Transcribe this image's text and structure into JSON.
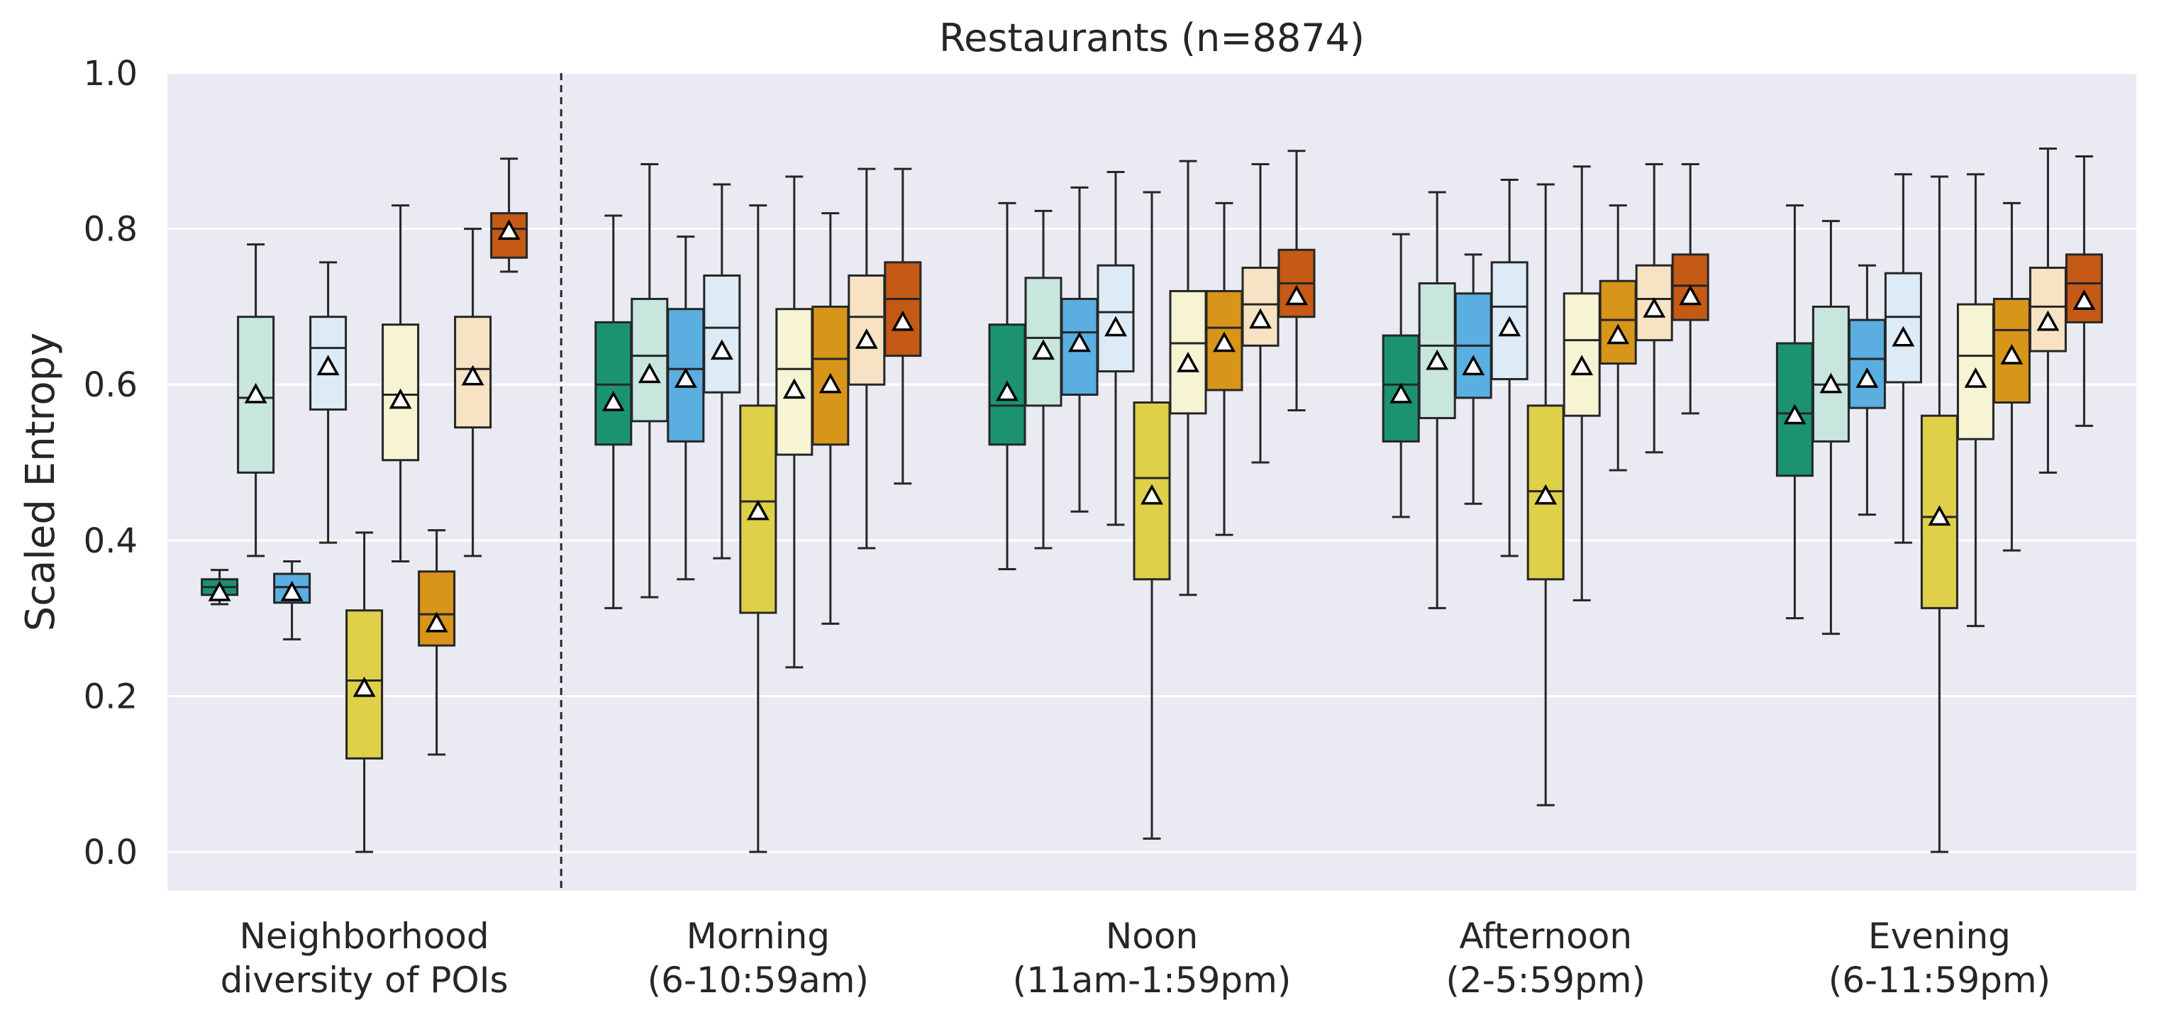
{
  "chart_data": {
    "type": "box",
    "title": "Restaurants (n=8874)",
    "xlabel": "",
    "ylabel": "Scaled Entropy",
    "ylim": [
      -0.05,
      1.0
    ],
    "yticks": [
      "0.0",
      "0.2",
      "0.4",
      "0.6",
      "0.8",
      "1.0"
    ],
    "grid": true,
    "legend": "none",
    "mean_marker": "triangle",
    "palette": [
      "#1b9371",
      "#c8e6dd",
      "#5aaee0",
      "#dcebf5",
      "#dfd04a",
      "#f7f4d4",
      "#d7951a",
      "#f7e3c4",
      "#c45a15"
    ],
    "categories": [
      {
        "label": "Neighborhood\ndiversity of POIs",
        "boxes": [
          {
            "min": 0.318,
            "q1": 0.33,
            "median": 0.34,
            "q3": 0.35,
            "max": 0.362,
            "mean": 0.333
          },
          {
            "min": 0.38,
            "q1": 0.487,
            "median": 0.583,
            "q3": 0.687,
            "max": 0.78,
            "mean": 0.587
          },
          {
            "min": 0.273,
            "q1": 0.32,
            "median": 0.34,
            "q3": 0.357,
            "max": 0.373,
            "mean": 0.333
          },
          {
            "min": 0.397,
            "q1": 0.568,
            "median": 0.647,
            "q3": 0.687,
            "max": 0.757,
            "mean": 0.623
          },
          {
            "min": 0.0,
            "q1": 0.12,
            "median": 0.22,
            "q3": 0.31,
            "max": 0.41,
            "mean": 0.21
          },
          {
            "min": 0.373,
            "q1": 0.503,
            "median": 0.587,
            "q3": 0.677,
            "max": 0.83,
            "mean": 0.58
          },
          {
            "min": 0.125,
            "q1": 0.265,
            "median": 0.305,
            "q3": 0.36,
            "max": 0.413,
            "mean": 0.293
          },
          {
            "min": 0.38,
            "q1": 0.545,
            "median": 0.62,
            "q3": 0.687,
            "max": 0.8,
            "mean": 0.61
          },
          {
            "min": 0.745,
            "q1": 0.763,
            "median": 0.8,
            "q3": 0.82,
            "max": 0.89,
            "mean": 0.797
          }
        ]
      },
      {
        "label": "Morning\n(6-10:59am)",
        "boxes": [
          {
            "min": 0.313,
            "q1": 0.523,
            "median": 0.6,
            "q3": 0.68,
            "max": 0.817,
            "mean": 0.577
          },
          {
            "min": 0.327,
            "q1": 0.553,
            "median": 0.637,
            "q3": 0.71,
            "max": 0.883,
            "mean": 0.613
          },
          {
            "min": 0.35,
            "q1": 0.527,
            "median": 0.62,
            "q3": 0.697,
            "max": 0.79,
            "mean": 0.607
          },
          {
            "min": 0.377,
            "q1": 0.59,
            "median": 0.673,
            "q3": 0.74,
            "max": 0.857,
            "mean": 0.643
          },
          {
            "min": 0.0,
            "q1": 0.307,
            "median": 0.45,
            "q3": 0.573,
            "max": 0.83,
            "mean": 0.437
          },
          {
            "min": 0.237,
            "q1": 0.51,
            "median": 0.62,
            "q3": 0.697,
            "max": 0.867,
            "mean": 0.593
          },
          {
            "min": 0.293,
            "q1": 0.523,
            "median": 0.633,
            "q3": 0.7,
            "max": 0.82,
            "mean": 0.6
          },
          {
            "min": 0.39,
            "q1": 0.6,
            "median": 0.687,
            "q3": 0.74,
            "max": 0.877,
            "mean": 0.657
          },
          {
            "min": 0.473,
            "q1": 0.637,
            "median": 0.71,
            "q3": 0.757,
            "max": 0.877,
            "mean": 0.68
          }
        ]
      },
      {
        "label": "Noon\n(11am-1:59pm)",
        "boxes": [
          {
            "min": 0.363,
            "q1": 0.523,
            "median": 0.573,
            "q3": 0.677,
            "max": 0.833,
            "mean": 0.59
          },
          {
            "min": 0.39,
            "q1": 0.573,
            "median": 0.66,
            "q3": 0.737,
            "max": 0.823,
            "mean": 0.643
          },
          {
            "min": 0.437,
            "q1": 0.587,
            "median": 0.667,
            "q3": 0.71,
            "max": 0.853,
            "mean": 0.653
          },
          {
            "min": 0.42,
            "q1": 0.617,
            "median": 0.693,
            "q3": 0.753,
            "max": 0.873,
            "mean": 0.673
          },
          {
            "min": 0.017,
            "q1": 0.35,
            "median": 0.48,
            "q3": 0.577,
            "max": 0.847,
            "mean": 0.457
          },
          {
            "min": 0.33,
            "q1": 0.563,
            "median": 0.653,
            "q3": 0.72,
            "max": 0.887,
            "mean": 0.627
          },
          {
            "min": 0.407,
            "q1": 0.593,
            "median": 0.673,
            "q3": 0.72,
            "max": 0.833,
            "mean": 0.653
          },
          {
            "min": 0.5,
            "q1": 0.65,
            "median": 0.703,
            "q3": 0.75,
            "max": 0.883,
            "mean": 0.683
          },
          {
            "min": 0.567,
            "q1": 0.687,
            "median": 0.73,
            "q3": 0.773,
            "max": 0.9,
            "mean": 0.713
          }
        ]
      },
      {
        "label": "Afternoon\n(2-5:59pm)",
        "boxes": [
          {
            "min": 0.43,
            "q1": 0.527,
            "median": 0.6,
            "q3": 0.663,
            "max": 0.793,
            "mean": 0.587
          },
          {
            "min": 0.313,
            "q1": 0.557,
            "median": 0.65,
            "q3": 0.73,
            "max": 0.847,
            "mean": 0.63
          },
          {
            "min": 0.447,
            "q1": 0.583,
            "median": 0.65,
            "q3": 0.717,
            "max": 0.767,
            "mean": 0.623
          },
          {
            "min": 0.38,
            "q1": 0.607,
            "median": 0.7,
            "q3": 0.757,
            "max": 0.863,
            "mean": 0.673
          },
          {
            "min": 0.06,
            "q1": 0.35,
            "median": 0.463,
            "q3": 0.573,
            "max": 0.857,
            "mean": 0.457
          },
          {
            "min": 0.323,
            "q1": 0.56,
            "median": 0.657,
            "q3": 0.717,
            "max": 0.88,
            "mean": 0.623
          },
          {
            "min": 0.49,
            "q1": 0.627,
            "median": 0.683,
            "q3": 0.733,
            "max": 0.83,
            "mean": 0.663
          },
          {
            "min": 0.513,
            "q1": 0.657,
            "median": 0.71,
            "q3": 0.753,
            "max": 0.883,
            "mean": 0.697
          },
          {
            "min": 0.563,
            "q1": 0.683,
            "median": 0.727,
            "q3": 0.767,
            "max": 0.883,
            "mean": 0.713
          }
        ]
      },
      {
        "label": "Evening\n(6-11:59pm)",
        "boxes": [
          {
            "min": 0.3,
            "q1": 0.483,
            "median": 0.563,
            "q3": 0.653,
            "max": 0.83,
            "mean": 0.56
          },
          {
            "min": 0.28,
            "q1": 0.527,
            "median": 0.6,
            "q3": 0.7,
            "max": 0.81,
            "mean": 0.6
          },
          {
            "min": 0.433,
            "q1": 0.57,
            "median": 0.633,
            "q3": 0.683,
            "max": 0.753,
            "mean": 0.607
          },
          {
            "min": 0.397,
            "q1": 0.603,
            "median": 0.687,
            "q3": 0.743,
            "max": 0.87,
            "mean": 0.66
          },
          {
            "min": 0.0,
            "q1": 0.313,
            "median": 0.43,
            "q3": 0.56,
            "max": 0.867,
            "mean": 0.43
          },
          {
            "min": 0.29,
            "q1": 0.53,
            "median": 0.637,
            "q3": 0.703,
            "max": 0.87,
            "mean": 0.607
          },
          {
            "min": 0.387,
            "q1": 0.577,
            "median": 0.67,
            "q3": 0.71,
            "max": 0.833,
            "mean": 0.637
          },
          {
            "min": 0.487,
            "q1": 0.643,
            "median": 0.7,
            "q3": 0.75,
            "max": 0.903,
            "mean": 0.68
          },
          {
            "min": 0.547,
            "q1": 0.68,
            "median": 0.73,
            "q3": 0.767,
            "max": 0.893,
            "mean": 0.707
          }
        ]
      }
    ]
  }
}
